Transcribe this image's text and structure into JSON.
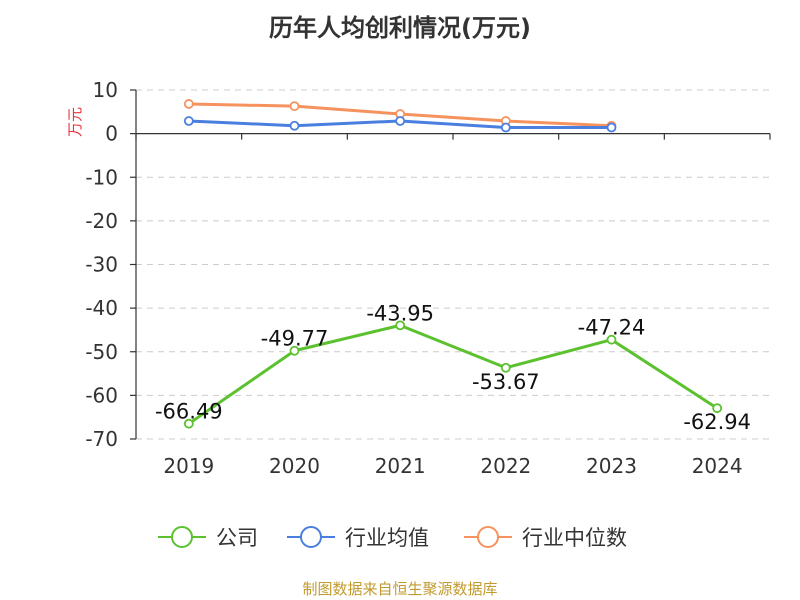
{
  "chart_data": {
    "type": "line",
    "title": "历年人均创利情况(万元)",
    "ylabel": "万元",
    "categories": [
      "2019",
      "2020",
      "2021",
      "2022",
      "2023",
      "2024"
    ],
    "ylim": [
      -70,
      10
    ],
    "yticks": [
      10,
      0,
      -10,
      -20,
      -30,
      -40,
      -50,
      -60,
      -70
    ],
    "grid": true,
    "legend": "bottom",
    "series": [
      {
        "name": "公司",
        "color": "#5cc12f",
        "values": [
          -66.49,
          -49.77,
          -43.95,
          -53.67,
          -47.24,
          -62.94
        ],
        "labels": [
          "-66.49",
          "-49.77",
          "-43.95",
          "-53.67",
          "-47.24",
          "-62.94"
        ]
      },
      {
        "name": "行业均值",
        "color": "#4a7fe0",
        "values": [
          2.9,
          1.8,
          2.9,
          1.4,
          1.4,
          null
        ]
      },
      {
        "name": "行业中位数",
        "color": "#f5925e",
        "values": [
          6.8,
          6.3,
          4.5,
          2.9,
          1.8,
          null
        ]
      }
    ]
  },
  "source": "制图数据来自恒生聚源数据库"
}
